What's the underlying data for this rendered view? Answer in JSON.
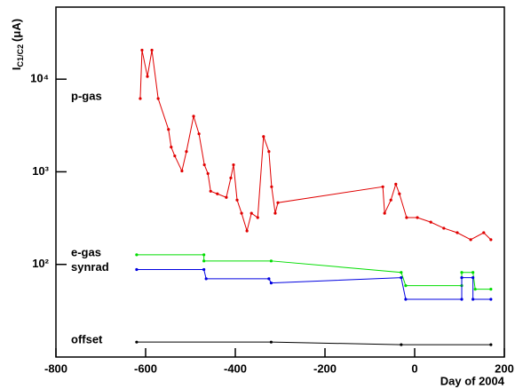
{
  "chart_data": {
    "type": "line",
    "y_label": "I",
    "y_label_sub": "C1/C2",
    "y_label_unit": "(μA)",
    "x_label": "Day of 2004",
    "xlim": [
      -800,
      200
    ],
    "xticks": [
      -800,
      -600,
      -400,
      -200,
      0,
      200
    ],
    "ylim": [
      10,
      60000
    ],
    "yticks": [
      {
        "value": 100,
        "label": "10²"
      },
      {
        "value": 1000,
        "label": "10³"
      },
      {
        "value": 10000,
        "label": "10⁴"
      }
    ],
    "log_y": true,
    "grid": false,
    "series": [
      {
        "name": "p-gas",
        "color": "#e00000",
        "x": [
          -612,
          -608,
          -596,
          -586,
          -572,
          -549,
          -543,
          -535,
          -519,
          -509,
          -493,
          -481,
          -469,
          -461,
          -455,
          -440,
          -420,
          -410,
          -404,
          -396,
          -386,
          -374,
          -364,
          -350,
          -337,
          -325,
          -319,
          -311,
          -305,
          -71,
          -67,
          -53,
          -42,
          -34,
          -18,
          6,
          36,
          65,
          95,
          125,
          154,
          170
        ],
        "values": [
          6170,
          20600,
          10690,
          20600,
          6170,
          2865,
          1850,
          1484,
          1020,
          1655,
          3980,
          2570,
          1190,
          957,
          617,
          578,
          529,
          858,
          1190,
          496,
          357,
          230,
          357,
          320,
          2404,
          1655,
          689,
          357,
          464,
          689,
          357,
          496,
          736,
          578,
          320,
          320,
          286,
          246,
          220,
          185,
          220,
          185
        ]
      },
      {
        "name": "e-gas",
        "color": "#00dd00",
        "x": [
          -620,
          -470,
          -470,
          -320,
          -30,
          -20,
          105,
          105,
          130,
          135,
          170
        ],
        "values": [
          127,
          127,
          109,
          109,
          82,
          59,
          59,
          82,
          82,
          54,
          54
        ]
      },
      {
        "name": "synrad",
        "color": "#0000e0",
        "x": [
          -620,
          -470,
          -465,
          -325,
          -320,
          -30,
          -20,
          105,
          105,
          130,
          130,
          170
        ],
        "values": [
          88,
          88,
          70,
          70,
          63,
          72,
          42,
          42,
          72,
          72,
          42,
          42
        ]
      },
      {
        "name": "offset",
        "color": "#000000",
        "x": [
          -620,
          -320,
          -30,
          170
        ],
        "values": [
          14.5,
          14.5,
          13.6,
          13.6
        ]
      }
    ]
  }
}
